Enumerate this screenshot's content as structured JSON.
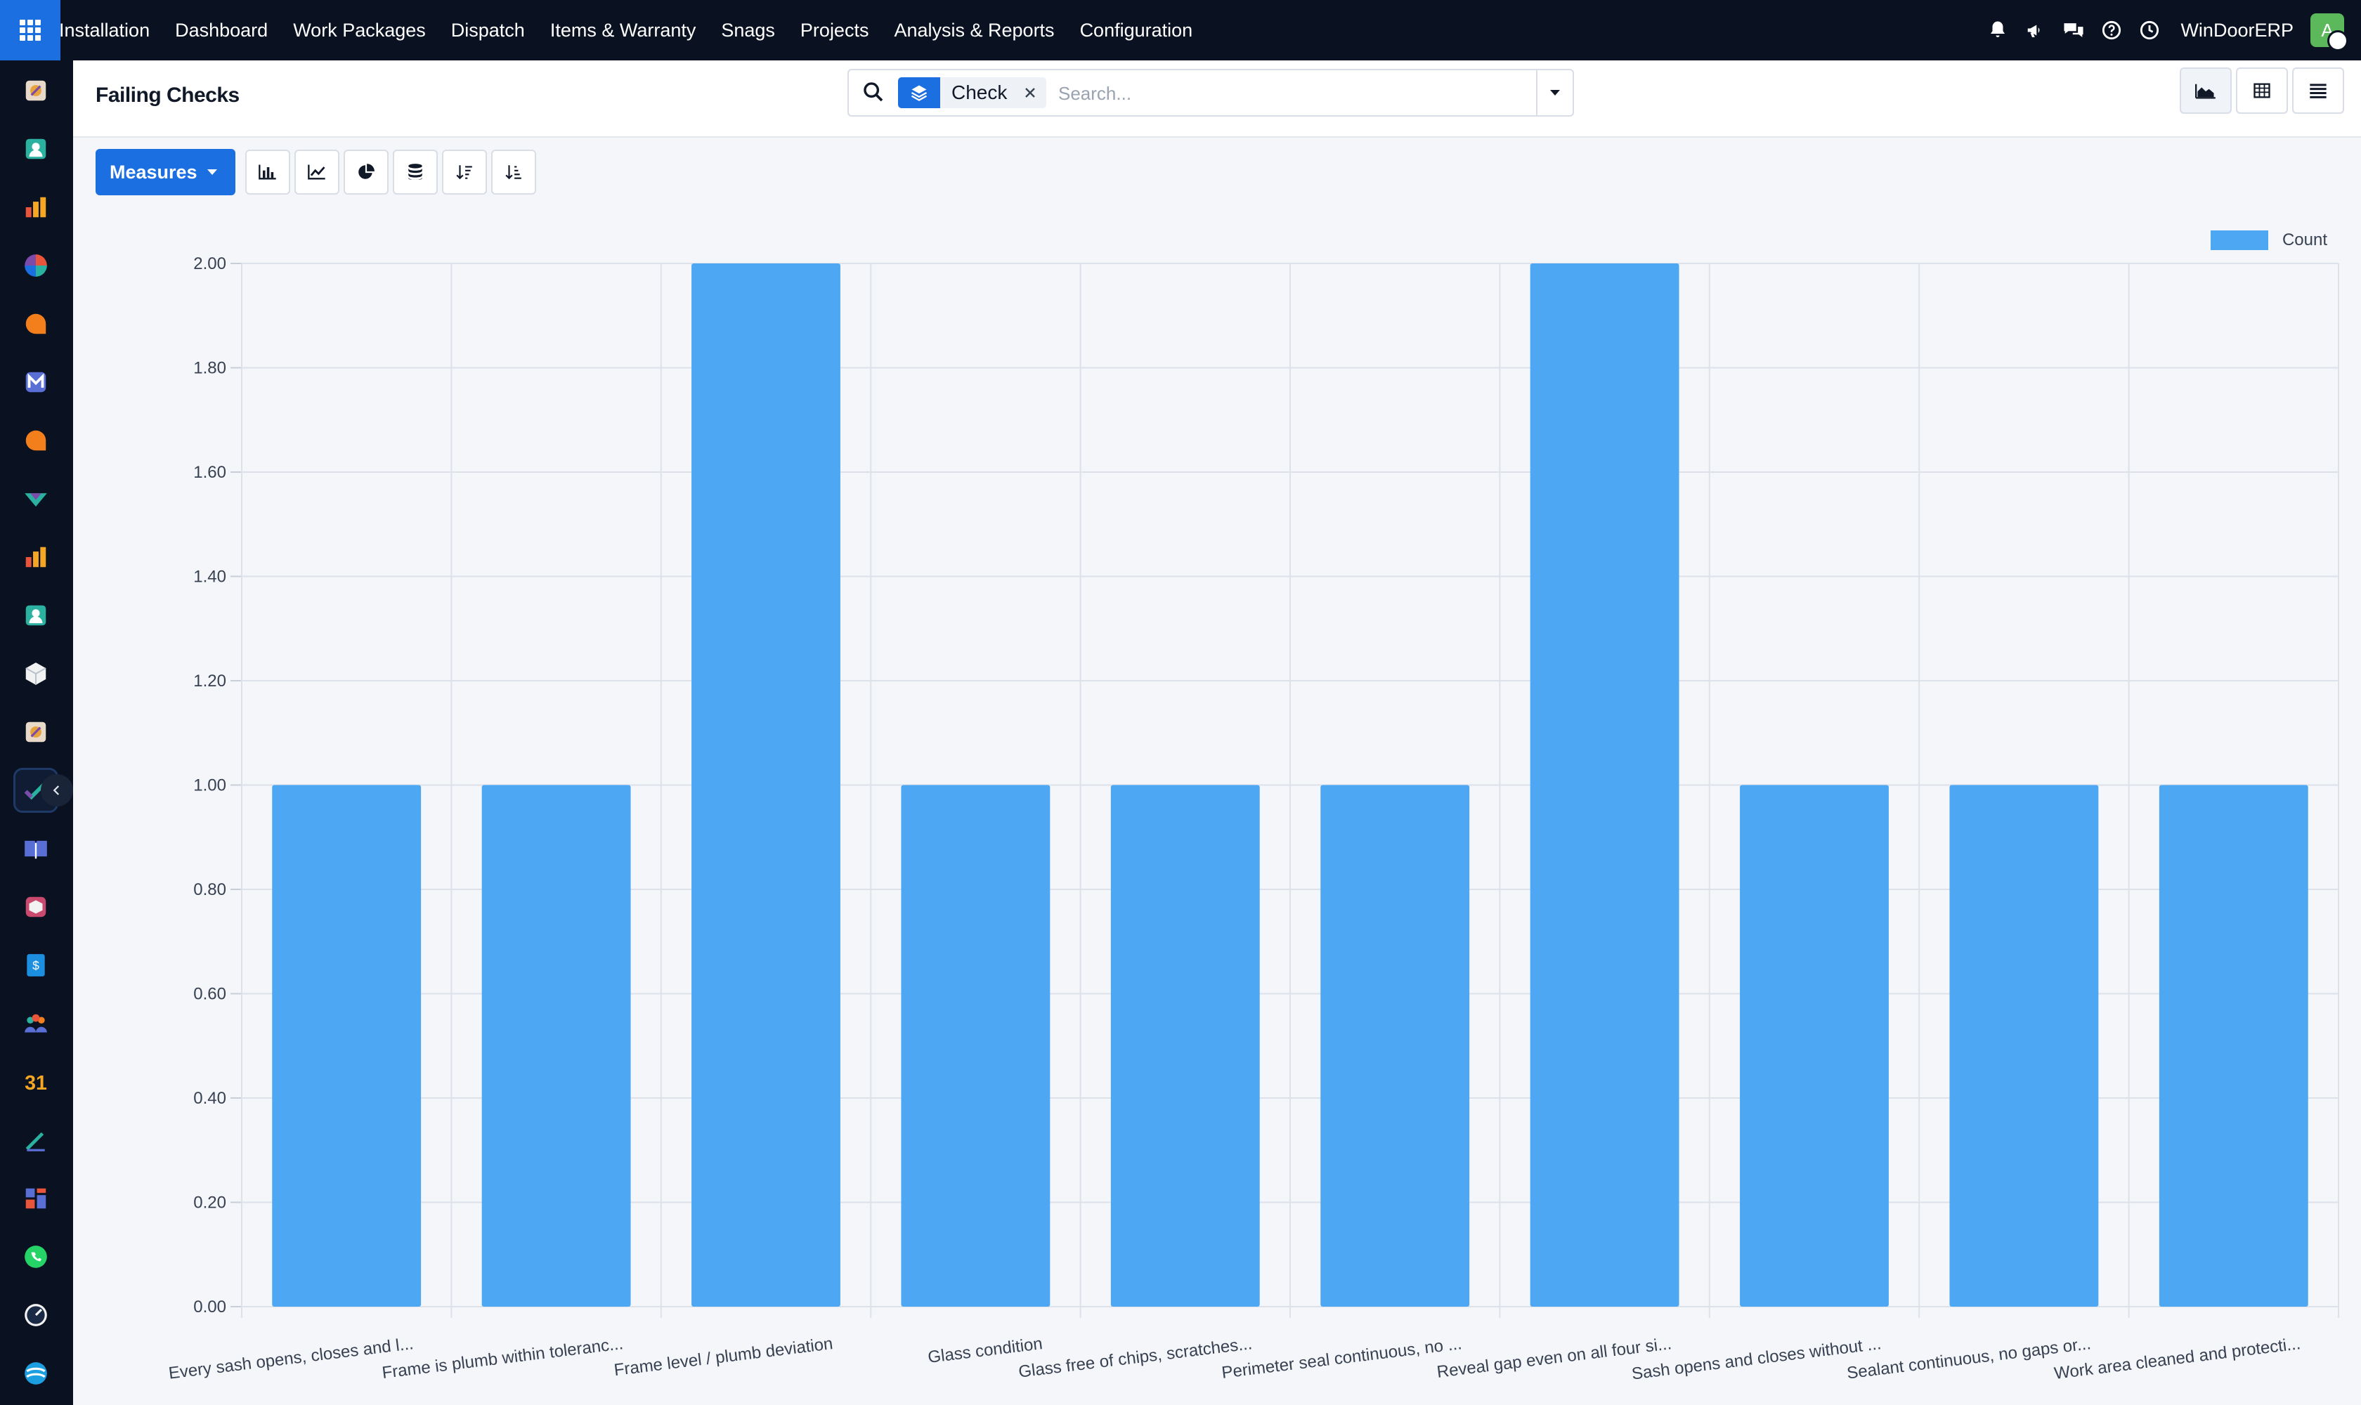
{
  "topbar": {
    "menu": [
      "Installation",
      "Dashboard",
      "Work Packages",
      "Dispatch",
      "Items & Warranty",
      "Snags",
      "Projects",
      "Analysis & Reports",
      "Configuration"
    ],
    "company": "WinDoorERP",
    "avatar_letter": "A",
    "icons": [
      "bell-icon",
      "megaphone-icon",
      "chat-icon",
      "help-icon",
      "clock-icon"
    ]
  },
  "sidebar": {
    "apps": [
      "apps-icon-1",
      "apps-icon-2",
      "apps-icon-3",
      "apps-icon-4",
      "apps-icon-5",
      "apps-icon-6",
      "apps-icon-7",
      "apps-icon-8",
      "apps-icon-9",
      "apps-icon-10",
      "apps-icon-11",
      "apps-icon-12",
      "apps-icon-13",
      "apps-icon-14",
      "apps-icon-15",
      "apps-icon-16",
      "apps-icon-17",
      "apps-icon-18",
      "apps-icon-19",
      "apps-icon-20",
      "apps-icon-21",
      "apps-icon-22",
      "apps-icon-23"
    ],
    "active_index": 12
  },
  "control": {
    "title": "Failing Checks",
    "search": {
      "facet_label": "Check",
      "placeholder": "Search..."
    }
  },
  "toolbar": {
    "measures_label": "Measures"
  },
  "colors": {
    "accent": "#1c6fe0",
    "bar": "#4ea7f2",
    "topbar": "#0a1222"
  },
  "chart_data": {
    "type": "bar",
    "categories": [
      "Every sash opens, closes and l...",
      "Frame is plumb within toleranc...",
      "Frame level / plumb deviation",
      "Glass condition",
      "Glass free of chips, scratches...",
      "Perimeter seal continuous, no ...",
      "Reveal gap even on all four si...",
      "Sash opens and closes without ...",
      "Sealant continuous, no gaps or...",
      "Work area cleaned and protecti..."
    ],
    "series": [
      {
        "name": "Count",
        "values": [
          1,
          1,
          2,
          1,
          1,
          1,
          2,
          1,
          1,
          1
        ]
      }
    ],
    "ylim": [
      0,
      2
    ],
    "yticks": [
      "0.00",
      "0.20",
      "0.40",
      "0.60",
      "0.80",
      "1.00",
      "1.20",
      "1.40",
      "1.60",
      "1.80",
      "2.00"
    ],
    "grid": true,
    "legend": "top-right"
  }
}
